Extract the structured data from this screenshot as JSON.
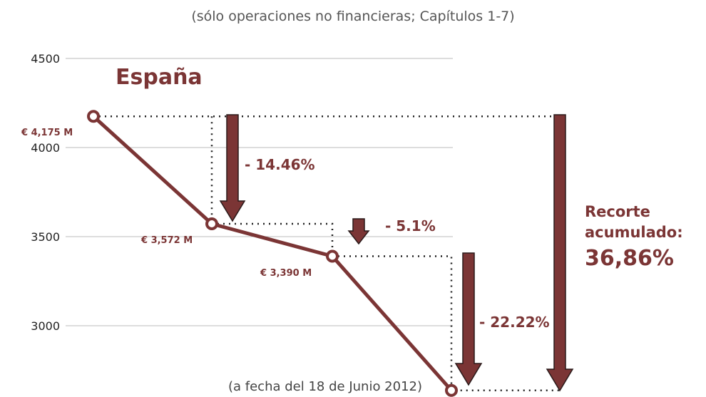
{
  "chart_data": {
    "type": "line",
    "subtitle": "(sólo operaciones no financieras; Capítulos 1-7)",
    "region_label": "España",
    "note": "(a fecha del 18 de Junio 2012)",
    "y_ticks": [
      "4500",
      "4000",
      "3500",
      "3000"
    ],
    "ylim": [
      2640,
      4500
    ],
    "grid": true,
    "series": [
      {
        "values": [
          4175,
          3572,
          3390,
          2637
        ]
      }
    ],
    "data_labels": [
      "€ 4,175 M",
      "€ 3,572 M",
      "€ 3,390 M"
    ],
    "changes": [
      "- 14.46%",
      "- 5.1%",
      "- 22.22%"
    ],
    "cumulative_label": [
      "Recorte",
      "acumulado:"
    ],
    "cumulative_value": "36,86%",
    "colors": {
      "line": "#7b3535",
      "arrow": "#7b3535",
      "text": "#7b3535",
      "grid": "#bbbbbb"
    }
  }
}
